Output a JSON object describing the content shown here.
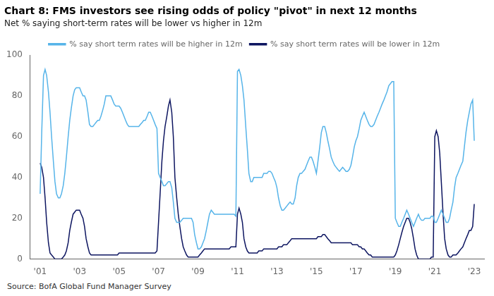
{
  "chart_data": {
    "type": "line",
    "title": "Chart 8: FMS investors see rising odds of policy \"pivot\" in next 12 months",
    "subtitle": "Net % saying short-term rates will be lower vs higher in 12m",
    "annotations": [
      "Source: BofA Global Fund Manager Survey"
    ],
    "xlim": [
      2000.5,
      2023.5
    ],
    "xticks": [
      {
        "value": 2001,
        "label": "'01"
      },
      {
        "value": 2003,
        "label": "'03"
      },
      {
        "value": 2005,
        "label": "'05"
      },
      {
        "value": 2007,
        "label": "'07"
      },
      {
        "value": 2009,
        "label": "'09"
      },
      {
        "value": 2011,
        "label": "'11"
      },
      {
        "value": 2013,
        "label": "'13"
      },
      {
        "value": 2015,
        "label": "'15"
      },
      {
        "value": 2017,
        "label": "'17"
      },
      {
        "value": 2019,
        "label": "'19"
      },
      {
        "value": 2021,
        "label": "'21"
      },
      {
        "value": 2023,
        "label": "'23"
      }
    ],
    "ylim": [
      0,
      100
    ],
    "yticks": [
      0,
      20,
      40,
      60,
      80,
      100
    ],
    "grid": false,
    "legend": "top",
    "x": [
      2001.0,
      2001.08,
      2001.17,
      2001.25,
      2001.33,
      2001.42,
      2001.5,
      2001.58,
      2001.67,
      2001.75,
      2001.83,
      2001.92,
      2002.0,
      2002.08,
      2002.17,
      2002.25,
      2002.33,
      2002.42,
      2002.5,
      2002.58,
      2002.67,
      2002.75,
      2002.83,
      2002.92,
      2003.0,
      2003.08,
      2003.17,
      2003.25,
      2003.33,
      2003.42,
      2003.5,
      2003.58,
      2003.67,
      2003.75,
      2003.83,
      2003.92,
      2004.0,
      2004.08,
      2004.17,
      2004.25,
      2004.33,
      2004.42,
      2004.5,
      2004.58,
      2004.67,
      2004.75,
      2004.83,
      2004.92,
      2005.0,
      2005.08,
      2005.17,
      2005.25,
      2005.33,
      2005.42,
      2005.5,
      2005.58,
      2005.67,
      2005.75,
      2005.83,
      2005.92,
      2006.0,
      2006.08,
      2006.17,
      2006.25,
      2006.33,
      2006.42,
      2006.5,
      2006.58,
      2006.67,
      2006.75,
      2006.83,
      2006.92,
      2007.0,
      2007.08,
      2007.17,
      2007.25,
      2007.33,
      2007.42,
      2007.5,
      2007.58,
      2007.67,
      2007.75,
      2007.83,
      2007.92,
      2008.0,
      2008.08,
      2008.17,
      2008.25,
      2008.33,
      2008.42,
      2008.5,
      2008.58,
      2008.67,
      2008.75,
      2008.83,
      2008.92,
      2009.0,
      2009.08,
      2009.17,
      2009.25,
      2009.33,
      2009.42,
      2009.5,
      2009.58,
      2009.67,
      2009.75,
      2009.83,
      2009.92,
      2010.0,
      2010.08,
      2010.17,
      2010.25,
      2010.33,
      2010.42,
      2010.5,
      2010.58,
      2010.67,
      2010.75,
      2010.83,
      2010.92,
      2011.0,
      2011.08,
      2011.17,
      2011.25,
      2011.33,
      2011.42,
      2011.5,
      2011.58,
      2011.67,
      2011.75,
      2011.83,
      2011.92,
      2012.0,
      2012.08,
      2012.17,
      2012.25,
      2012.33,
      2012.42,
      2012.5,
      2012.58,
      2012.67,
      2012.75,
      2012.83,
      2012.92,
      2013.0,
      2013.08,
      2013.17,
      2013.25,
      2013.33,
      2013.42,
      2013.5,
      2013.58,
      2013.67,
      2013.75,
      2013.83,
      2013.92,
      2014.0,
      2014.08,
      2014.17,
      2014.25,
      2014.33,
      2014.42,
      2014.5,
      2014.58,
      2014.67,
      2014.75,
      2014.83,
      2014.92,
      2015.0,
      2015.08,
      2015.17,
      2015.25,
      2015.33,
      2015.42,
      2015.5,
      2015.58,
      2015.67,
      2015.75,
      2015.83,
      2015.92,
      2016.0,
      2016.08,
      2016.17,
      2016.25,
      2016.33,
      2016.42,
      2016.5,
      2016.58,
      2016.67,
      2016.75,
      2016.83,
      2016.92,
      2017.0,
      2017.08,
      2017.17,
      2017.25,
      2017.33,
      2017.42,
      2017.5,
      2017.58,
      2017.67,
      2017.75,
      2017.83,
      2017.92,
      2018.0,
      2018.08,
      2018.17,
      2018.25,
      2018.33,
      2018.42,
      2018.5,
      2018.58,
      2018.67,
      2018.75,
      2018.83,
      2018.92,
      2019.0,
      2019.08,
      2019.17,
      2019.25,
      2019.33,
      2019.42,
      2019.5,
      2019.58,
      2019.67,
      2019.75,
      2019.83,
      2019.92,
      2020.0,
      2020.08,
      2020.17,
      2020.25,
      2020.33,
      2020.42,
      2020.5,
      2020.58,
      2020.67,
      2020.75,
      2020.83,
      2020.92,
      2021.0,
      2021.08,
      2021.17,
      2021.25,
      2021.33,
      2021.42,
      2021.5,
      2021.58,
      2021.67,
      2021.75,
      2021.83,
      2021.92,
      2022.0,
      2022.08,
      2022.17,
      2022.25,
      2022.33,
      2022.42,
      2022.5,
      2022.58,
      2022.67,
      2022.75,
      2022.83,
      2022.92,
      2023.0
    ],
    "series": [
      {
        "name": "% say short term rates will be higher in 12m",
        "color": "#56b4e9",
        "values": [
          32,
          62,
          90,
          93,
          90,
          82,
          72,
          60,
          48,
          38,
          32,
          30,
          30,
          32,
          36,
          42,
          50,
          60,
          68,
          74,
          80,
          83,
          84,
          84,
          84,
          82,
          80,
          80,
          78,
          72,
          66,
          65,
          65,
          66,
          67,
          68,
          68,
          70,
          73,
          76,
          80,
          80,
          80,
          80,
          78,
          76,
          75,
          75,
          75,
          74,
          72,
          70,
          68,
          66,
          65,
          65,
          65,
          65,
          65,
          65,
          65,
          66,
          67,
          68,
          68,
          70,
          72,
          72,
          70,
          68,
          66,
          64,
          42,
          40,
          38,
          36,
          36,
          37,
          38,
          38,
          35,
          28,
          20,
          18,
          18,
          18,
          19,
          20,
          20,
          20,
          20,
          20,
          20,
          18,
          12,
          8,
          5,
          5,
          6,
          8,
          10,
          14,
          18,
          22,
          24,
          23,
          22,
          22,
          22,
          22,
          22,
          22,
          22,
          22,
          22,
          22,
          22,
          22,
          22,
          21,
          92,
          93,
          90,
          85,
          78,
          65,
          54,
          42,
          38,
          38,
          40,
          40,
          40,
          40,
          40,
          40,
          42,
          42,
          42,
          43,
          43,
          42,
          40,
          38,
          35,
          30,
          26,
          24,
          24,
          25,
          26,
          27,
          28,
          27,
          27,
          30,
          36,
          40,
          42,
          42,
          43,
          44,
          46,
          48,
          50,
          50,
          48,
          45,
          42,
          48,
          55,
          62,
          65,
          65,
          62,
          58,
          54,
          50,
          48,
          46,
          45,
          44,
          43,
          44,
          45,
          44,
          43,
          43,
          44,
          46,
          50,
          55,
          58,
          60,
          64,
          68,
          70,
          72,
          70,
          68,
          66,
          65,
          65,
          66,
          68,
          70,
          72,
          74,
          76,
          78,
          80,
          82,
          85,
          86,
          87,
          87,
          20,
          18,
          16,
          16,
          18,
          20,
          22,
          24,
          22,
          20,
          18,
          16,
          18,
          20,
          22,
          20,
          19,
          19,
          20,
          20,
          20,
          20,
          21,
          21,
          18,
          18,
          20,
          22,
          24,
          22,
          20,
          18,
          18,
          20,
          24,
          28,
          35,
          40,
          42,
          44,
          46,
          48,
          55,
          62,
          68,
          72,
          76,
          78,
          58
        ]
      },
      {
        "name": "% say short term rates will be lower in 12m",
        "color": "#0d1560",
        "values": [
          47,
          45,
          40,
          30,
          18,
          8,
          3,
          2,
          1,
          0,
          0,
          0,
          0,
          0,
          1,
          2,
          4,
          8,
          14,
          18,
          22,
          23,
          24,
          24,
          24,
          22,
          20,
          16,
          10,
          6,
          3,
          2,
          2,
          2,
          2,
          2,
          2,
          2,
          2,
          2,
          2,
          2,
          2,
          2,
          2,
          2,
          2,
          2,
          3,
          3,
          3,
          3,
          3,
          3,
          3,
          3,
          3,
          3,
          3,
          3,
          3,
          3,
          3,
          3,
          3,
          3,
          3,
          3,
          3,
          3,
          3,
          4,
          18,
          32,
          48,
          58,
          65,
          70,
          75,
          78,
          72,
          60,
          40,
          30,
          22,
          16,
          10,
          6,
          4,
          2,
          1,
          1,
          1,
          1,
          1,
          1,
          1,
          2,
          3,
          4,
          5,
          5,
          5,
          5,
          5,
          5,
          5,
          5,
          5,
          5,
          5,
          5,
          5,
          5,
          5,
          5,
          6,
          6,
          6,
          6,
          22,
          25,
          22,
          18,
          10,
          6,
          4,
          3,
          3,
          3,
          3,
          3,
          3,
          4,
          4,
          4,
          5,
          5,
          5,
          5,
          5,
          5,
          5,
          5,
          5,
          6,
          6,
          6,
          7,
          7,
          7,
          8,
          9,
          10,
          10,
          10,
          10,
          10,
          10,
          10,
          10,
          10,
          10,
          10,
          10,
          10,
          10,
          10,
          10,
          11,
          11,
          11,
          12,
          12,
          11,
          10,
          9,
          8,
          8,
          8,
          8,
          8,
          8,
          8,
          8,
          8,
          8,
          8,
          8,
          8,
          7,
          7,
          7,
          7,
          6,
          6,
          5,
          5,
          4,
          3,
          2,
          2,
          1,
          1,
          1,
          1,
          1,
          1,
          1,
          1,
          1,
          1,
          1,
          1,
          1,
          1,
          2,
          4,
          7,
          10,
          13,
          16,
          18,
          20,
          20,
          18,
          15,
          10,
          5,
          2,
          0,
          0,
          0,
          0,
          0,
          0,
          0,
          0,
          1,
          1,
          60,
          63,
          60,
          52,
          38,
          22,
          10,
          5,
          2,
          1,
          1,
          2,
          2,
          2,
          3,
          4,
          5,
          6,
          8,
          10,
          12,
          14,
          14,
          16,
          27
        ]
      }
    ]
  }
}
